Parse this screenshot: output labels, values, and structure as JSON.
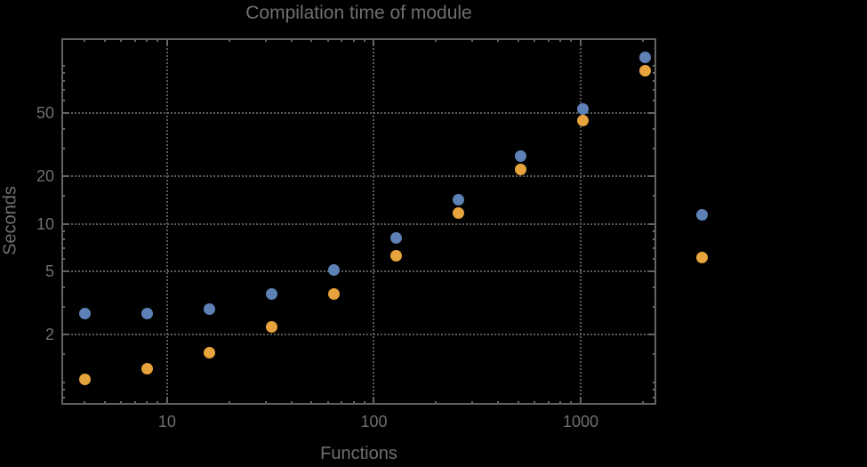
{
  "chart_data": {
    "type": "scatter",
    "title": "Compilation time of module",
    "xlabel": "Functions",
    "ylabel": "Seconds",
    "x_scale": "log",
    "y_scale": "log",
    "x_range": [
      3.08,
      2320
    ],
    "y_range": [
      0.72,
      149
    ],
    "grid": "dotted",
    "x": [
      4,
      8,
      16,
      32,
      64,
      128,
      256,
      512,
      1024,
      2048
    ],
    "series": [
      {
        "name": "blue",
        "color": "#5E81B5",
        "values": [
          2.7,
          2.7,
          2.9,
          3.6,
          5.1,
          8.2,
          14.3,
          26.7,
          53,
          113
        ]
      },
      {
        "name": "orange",
        "color": "#E7A33C",
        "values": [
          1.04,
          1.22,
          1.53,
          2.24,
          3.6,
          6.3,
          11.7,
          22.2,
          45,
          93
        ]
      }
    ],
    "x_ticks": {
      "major": [
        10,
        100,
        1000
      ],
      "labels": [
        "10",
        "100",
        "1000"
      ],
      "minor": [
        4,
        5,
        6,
        7,
        8,
        9,
        20,
        30,
        40,
        50,
        60,
        70,
        80,
        90,
        200,
        300,
        400,
        500,
        600,
        700,
        800,
        900,
        2000
      ]
    },
    "y_ticks": {
      "major": [
        2,
        5,
        10,
        20,
        50
      ],
      "labels": [
        "2",
        "5",
        "10",
        "20",
        "50"
      ],
      "minor": [
        0.8,
        0.9,
        1,
        1.5,
        3,
        4,
        6,
        7,
        8,
        9,
        15,
        30,
        40,
        60,
        70,
        80,
        90,
        100
      ]
    },
    "gridlines": {
      "x": [
        10,
        100,
        1000
      ],
      "y": [
        2,
        5,
        10,
        20,
        50
      ]
    },
    "legend": {
      "position": "right-outside",
      "markers": [
        {
          "name": "blue-marker",
          "color": "#5E81B5",
          "label": ""
        },
        {
          "name": "orange-marker",
          "color": "#E7A33C",
          "label": ""
        }
      ]
    },
    "colors": {
      "background": "#000000",
      "frame": "#636363",
      "text": "#6F6F6F",
      "grid": "#5A5A5A"
    }
  }
}
